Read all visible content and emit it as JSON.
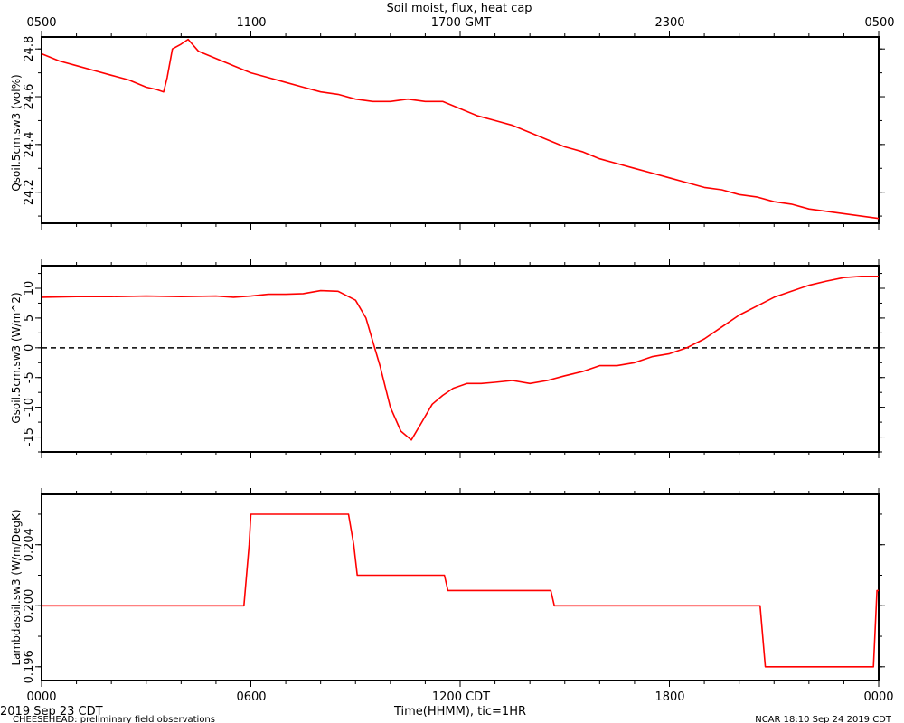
{
  "header": {
    "title": "Soil moist, flux, heat cap",
    "top_ticks": [
      "0500",
      "1100",
      "1700 GMT",
      "2300",
      "0500"
    ]
  },
  "footer": {
    "bottom_ticks": [
      "0000",
      "0600",
      "1200 CDT",
      "1800",
      "0000"
    ],
    "xlabel": "Time(HHMM), tic=1HR",
    "left_date": "2019 Sep 23 CDT",
    "left_note": "CHEESEHEAD: preliminary field observations",
    "right_note": "NCAR 18:10 Sep 24 2019 CDT"
  },
  "colors": {
    "series": "#ff0000",
    "axes": "#000000",
    "zero_line": "#000000"
  },
  "chart_data": [
    {
      "type": "line",
      "ylabel": "Qsoil.5cm.sw3 (vol%)",
      "ylim": [
        24.07,
        24.85
      ],
      "yticks": [
        "24.2",
        "24.4",
        "24.6",
        "24.8"
      ],
      "x_units": "hours since 0000 CDT",
      "x": [
        0,
        0.5,
        1,
        1.5,
        2,
        2.5,
        3,
        3.3,
        3.5,
        3.6,
        3.75,
        4,
        4.2,
        4.5,
        5,
        5.5,
        6,
        6.5,
        7,
        7.5,
        8,
        8.5,
        9,
        9.5,
        10,
        10.5,
        11,
        11.5,
        12,
        12.5,
        13,
        13.5,
        14,
        14.5,
        15,
        15.5,
        16,
        16.5,
        17,
        17.5,
        18,
        18.5,
        19,
        19.5,
        20,
        20.5,
        21,
        21.5,
        22,
        22.5,
        23,
        23.5,
        24
      ],
      "values": [
        24.78,
        24.75,
        24.73,
        24.71,
        24.69,
        24.67,
        24.64,
        24.63,
        24.62,
        24.68,
        24.8,
        24.82,
        24.84,
        24.79,
        24.76,
        24.73,
        24.7,
        24.68,
        24.66,
        24.64,
        24.62,
        24.61,
        24.59,
        24.58,
        24.58,
        24.59,
        24.58,
        24.58,
        24.55,
        24.52,
        24.5,
        24.48,
        24.45,
        24.42,
        24.39,
        24.37,
        24.34,
        24.32,
        24.3,
        24.28,
        24.26,
        24.24,
        24.22,
        24.21,
        24.19,
        24.18,
        24.16,
        24.15,
        24.13,
        24.12,
        24.11,
        24.1,
        24.09
      ]
    },
    {
      "type": "line",
      "ylabel": "Gsoil.5cm.sw3 (W/m^2)",
      "ylim": [
        -17.5,
        13.8
      ],
      "yticks": [
        "-15",
        "-10",
        "-5",
        "0",
        "5",
        "10"
      ],
      "zero_line": true,
      "x_units": "hours since 0000 CDT",
      "x": [
        0,
        1,
        2,
        3,
        4,
        5,
        5.5,
        6,
        6.5,
        7,
        7.5,
        8,
        8.5,
        9,
        9.3,
        9.5,
        9.7,
        10,
        10.3,
        10.6,
        10.9,
        11.2,
        11.5,
        11.8,
        12.2,
        12.6,
        13,
        13.5,
        14,
        14.5,
        15,
        15.5,
        16,
        16.5,
        17,
        17.5,
        18,
        18.5,
        19,
        19.5,
        20,
        20.5,
        21,
        21.5,
        22,
        22.5,
        23,
        23.5,
        24
      ],
      "values": [
        8.5,
        8.6,
        8.6,
        8.7,
        8.6,
        8.7,
        8.5,
        8.7,
        9.0,
        9.0,
        9.1,
        9.6,
        9.5,
        8.0,
        5.0,
        1.0,
        -3.0,
        -10.0,
        -14.0,
        -15.5,
        -12.5,
        -9.5,
        -8.0,
        -6.8,
        -6.0,
        -6.0,
        -5.8,
        -5.5,
        -6.0,
        -5.5,
        -4.7,
        -4.0,
        -3.0,
        -3.0,
        -2.5,
        -1.5,
        -1.0,
        0.0,
        1.5,
        3.5,
        5.5,
        7.0,
        8.5,
        9.5,
        10.5,
        11.2,
        11.8,
        12.0,
        12.0
      ]
    },
    {
      "type": "line",
      "ylabel": "Lambdasoil.sw3 (W/m/DegK)",
      "ylim": [
        0.1951,
        0.2073
      ],
      "yticks": [
        "0.196",
        "0.200",
        "0.204"
      ],
      "x_units": "hours since 0000 CDT",
      "x": [
        0,
        5.8,
        5.95,
        6.0,
        8.8,
        8.95,
        9.05,
        11.55,
        11.65,
        14.6,
        14.7,
        20.6,
        20.75,
        23.85,
        23.95,
        24
      ],
      "values": [
        0.2,
        0.2,
        0.204,
        0.206,
        0.206,
        0.204,
        0.202,
        0.202,
        0.201,
        0.201,
        0.2,
        0.2,
        0.196,
        0.196,
        0.201,
        0.201
      ]
    }
  ]
}
